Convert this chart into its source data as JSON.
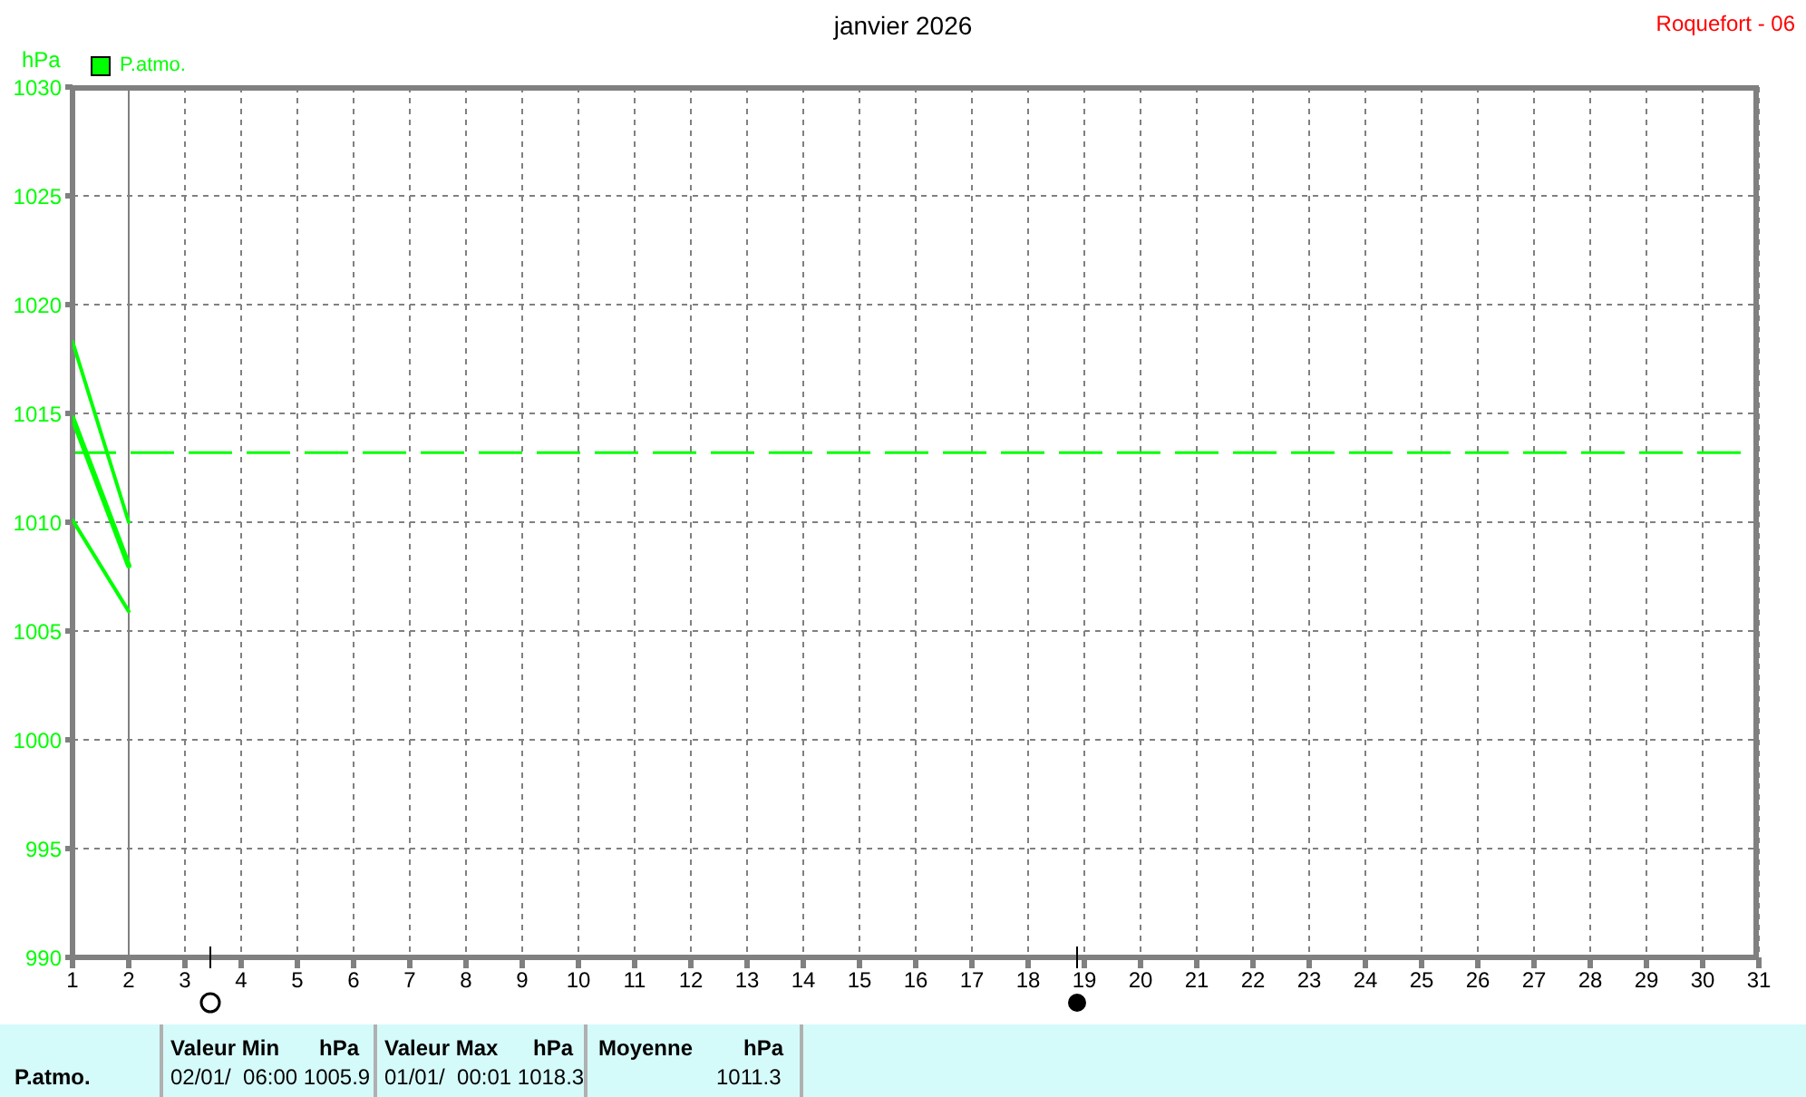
{
  "chart_data": {
    "type": "line",
    "title": "janvier 2026",
    "ylabel": "hPa",
    "xlim": [
      1,
      31
    ],
    "xticks": [
      1,
      2,
      3,
      4,
      5,
      6,
      7,
      8,
      9,
      10,
      11,
      12,
      13,
      14,
      15,
      16,
      17,
      18,
      19,
      20,
      21,
      22,
      23,
      24,
      25,
      26,
      27,
      28,
      29,
      30,
      31
    ],
    "ylim": [
      990,
      1030
    ],
    "yticks": [
      990,
      995,
      1000,
      1005,
      1010,
      1015,
      1020,
      1025,
      1030
    ],
    "grid": true,
    "legend": "top left",
    "marker": "none",
    "line_style": "solid",
    "x": [
      1,
      2
    ],
    "series": [
      {
        "color": "#00ff00",
        "values": [
          1018.3,
          1010.0
        ]
      },
      {
        "name": "P.atmo.",
        "color": "#00ff00",
        "values": [
          1014.8,
          1008.0
        ]
      },
      {
        "color": "#00ff00",
        "values": [
          1010.1,
          1005.9
        ]
      }
    ],
    "ref_lines": [
      {
        "axis": "y",
        "value": 1013.2,
        "color": "#00ff00",
        "line_style": "dashed"
      },
      {
        "axis": "x",
        "value": 2,
        "color": "#808080",
        "line_style": "solid"
      }
    ],
    "annotations": [
      "Roquefort - 06",
      "P.atmo.",
      "Valeur Min",
      "hPa",
      "02/01/  06:00",
      "1005.9",
      "Valeur Max",
      "hPa",
      "01/01/  00:01",
      "1018.3",
      "Moyenne",
      "hPa",
      "1011.3"
    ]
  }
}
